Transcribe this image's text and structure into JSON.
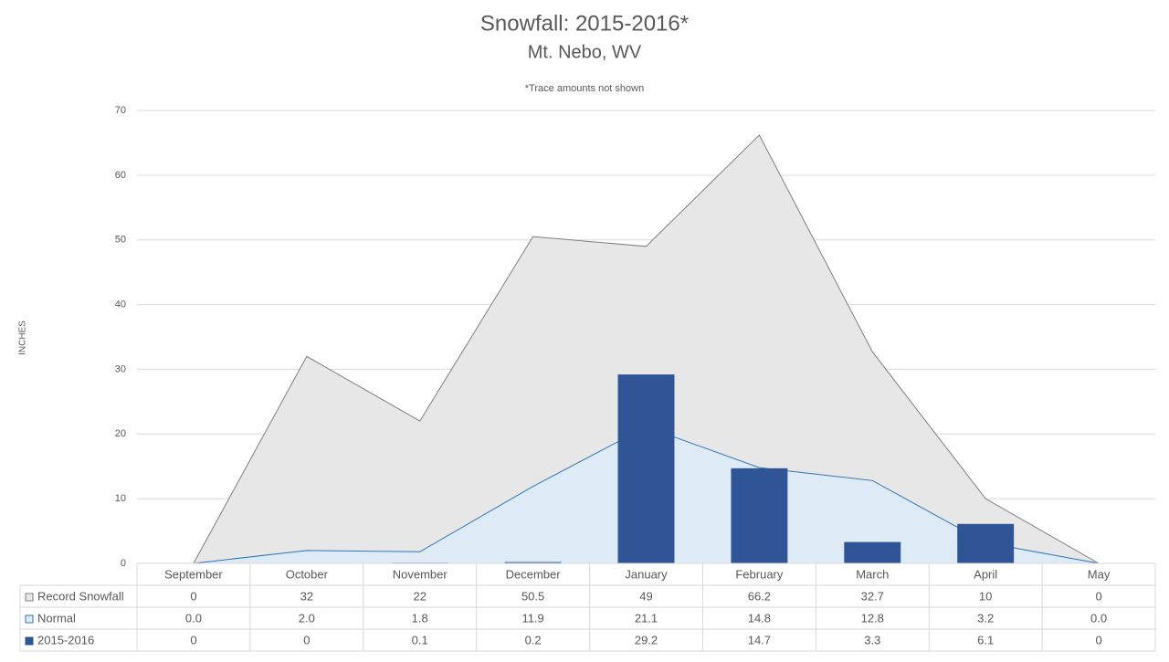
{
  "chart_data": {
    "type": "combo",
    "title": "Snowfall: 2015-2016*",
    "subtitle": "Mt. Nebo, WV",
    "annotation": "*Trace amounts not shown",
    "y_label": "INCHES",
    "categories": [
      "September",
      "October",
      "November",
      "December",
      "January",
      "February",
      "March",
      "April",
      "May"
    ],
    "ylim": [
      0,
      70
    ],
    "yticks": [
      0,
      10,
      20,
      30,
      40,
      50,
      60,
      70
    ],
    "grid": true,
    "series": [
      {
        "name": "Record Snowfall",
        "type": "area",
        "color": "#e7e7e7",
        "line_color": "#7f7f7f",
        "values": [
          0,
          32,
          22,
          50.5,
          49,
          66.2,
          32.7,
          10,
          0
        ]
      },
      {
        "name": "Normal",
        "type": "area",
        "color": "#deebf7",
        "line_color": "#2e75b6",
        "values": [
          0,
          2,
          1.8,
          11.9,
          21.1,
          14.8,
          12.8,
          3.2,
          0
        ],
        "value_labels": [
          "0.0",
          "2.0",
          "1.8",
          "11.9",
          "21.1",
          "14.8",
          "12.8",
          "3.2",
          "0.0"
        ]
      },
      {
        "name": "2015-2016",
        "type": "bar",
        "color": "#2f5597",
        "values": [
          0,
          0,
          0.1,
          0.2,
          29.2,
          14.7,
          3.3,
          6.1,
          0
        ]
      }
    ]
  }
}
